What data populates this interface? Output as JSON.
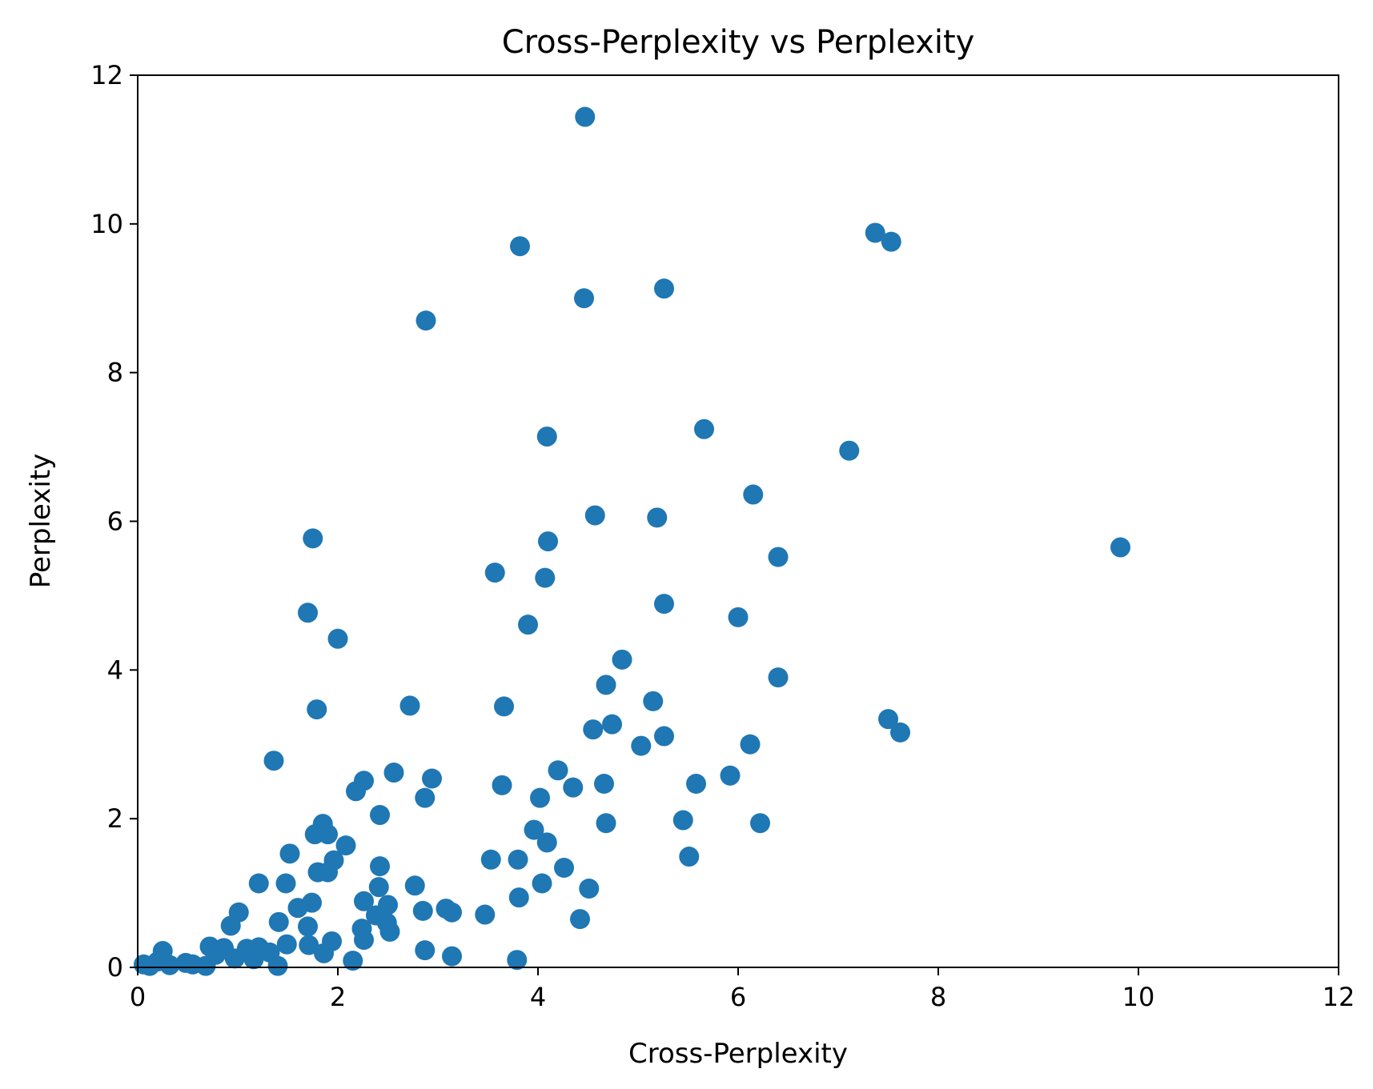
{
  "chart_data": {
    "type": "scatter",
    "title": "Cross-Perplexity vs Perplexity",
    "xlabel": "Cross-Perplexity",
    "ylabel": "Perplexity",
    "xlim": [
      0,
      12
    ],
    "ylim": [
      0,
      12
    ],
    "xticks": [
      "0",
      "2",
      "4",
      "6",
      "8",
      "10",
      "12"
    ],
    "yticks": [
      "0",
      "2",
      "4",
      "6",
      "8",
      "10",
      "12"
    ],
    "grid": false,
    "color": "#1f77b4",
    "points": [
      {
        "x": 4.47,
        "y": 11.44
      },
      {
        "x": 7.37,
        "y": 9.88
      },
      {
        "x": 7.53,
        "y": 9.76
      },
      {
        "x": 3.82,
        "y": 9.7
      },
      {
        "x": 5.26,
        "y": 9.13
      },
      {
        "x": 4.46,
        "y": 9.0
      },
      {
        "x": 2.88,
        "y": 8.7
      },
      {
        "x": 5.66,
        "y": 7.24
      },
      {
        "x": 4.09,
        "y": 7.14
      },
      {
        "x": 7.11,
        "y": 6.95
      },
      {
        "x": 6.15,
        "y": 6.36
      },
      {
        "x": 4.57,
        "y": 6.08
      },
      {
        "x": 5.19,
        "y": 6.05
      },
      {
        "x": 1.75,
        "y": 5.77
      },
      {
        "x": 4.1,
        "y": 5.73
      },
      {
        "x": 9.82,
        "y": 5.65
      },
      {
        "x": 6.4,
        "y": 5.52
      },
      {
        "x": 3.57,
        "y": 5.31
      },
      {
        "x": 4.07,
        "y": 5.24
      },
      {
        "x": 5.26,
        "y": 4.89
      },
      {
        "x": 1.7,
        "y": 4.77
      },
      {
        "x": 6.0,
        "y": 4.71
      },
      {
        "x": 3.9,
        "y": 4.61
      },
      {
        "x": 2.0,
        "y": 4.42
      },
      {
        "x": 4.84,
        "y": 4.14
      },
      {
        "x": 6.4,
        "y": 3.9
      },
      {
        "x": 4.68,
        "y": 3.8
      },
      {
        "x": 5.15,
        "y": 3.58
      },
      {
        "x": 2.72,
        "y": 3.52
      },
      {
        "x": 3.66,
        "y": 3.51
      },
      {
        "x": 1.79,
        "y": 3.47
      },
      {
        "x": 7.5,
        "y": 3.34
      },
      {
        "x": 4.74,
        "y": 3.27
      },
      {
        "x": 4.55,
        "y": 3.2
      },
      {
        "x": 7.62,
        "y": 3.16
      },
      {
        "x": 5.26,
        "y": 3.11
      },
      {
        "x": 6.12,
        "y": 3.0
      },
      {
        "x": 5.03,
        "y": 2.98
      },
      {
        "x": 1.36,
        "y": 2.78
      },
      {
        "x": 4.2,
        "y": 2.65
      },
      {
        "x": 2.56,
        "y": 2.62
      },
      {
        "x": 5.92,
        "y": 2.58
      },
      {
        "x": 2.94,
        "y": 2.54
      },
      {
        "x": 2.26,
        "y": 2.51
      },
      {
        "x": 4.66,
        "y": 2.47
      },
      {
        "x": 5.58,
        "y": 2.47
      },
      {
        "x": 3.64,
        "y": 2.45
      },
      {
        "x": 4.35,
        "y": 2.42
      },
      {
        "x": 2.18,
        "y": 2.37
      },
      {
        "x": 2.87,
        "y": 2.28
      },
      {
        "x": 4.02,
        "y": 2.28
      },
      {
        "x": 2.42,
        "y": 2.05
      },
      {
        "x": 5.45,
        "y": 1.98
      },
      {
        "x": 4.68,
        "y": 1.94
      },
      {
        "x": 6.22,
        "y": 1.94
      },
      {
        "x": 1.85,
        "y": 1.93
      },
      {
        "x": 3.96,
        "y": 1.85
      },
      {
        "x": 1.77,
        "y": 1.79
      },
      {
        "x": 1.9,
        "y": 1.79
      },
      {
        "x": 4.09,
        "y": 1.68
      },
      {
        "x": 2.08,
        "y": 1.64
      },
      {
        "x": 1.52,
        "y": 1.53
      },
      {
        "x": 5.51,
        "y": 1.49
      },
      {
        "x": 3.53,
        "y": 1.45
      },
      {
        "x": 3.8,
        "y": 1.45
      },
      {
        "x": 1.96,
        "y": 1.44
      },
      {
        "x": 2.42,
        "y": 1.36
      },
      {
        "x": 4.26,
        "y": 1.34
      },
      {
        "x": 1.8,
        "y": 1.28
      },
      {
        "x": 1.9,
        "y": 1.28
      },
      {
        "x": 1.21,
        "y": 1.13
      },
      {
        "x": 1.48,
        "y": 1.13
      },
      {
        "x": 4.04,
        "y": 1.13
      },
      {
        "x": 2.77,
        "y": 1.1
      },
      {
        "x": 2.41,
        "y": 1.08
      },
      {
        "x": 4.51,
        "y": 1.06
      },
      {
        "x": 3.81,
        "y": 0.94
      },
      {
        "x": 2.26,
        "y": 0.89
      },
      {
        "x": 1.74,
        "y": 0.87
      },
      {
        "x": 2.5,
        "y": 0.84
      },
      {
        "x": 1.6,
        "y": 0.8
      },
      {
        "x": 3.08,
        "y": 0.79
      },
      {
        "x": 2.85,
        "y": 0.76
      },
      {
        "x": 1.01,
        "y": 0.74
      },
      {
        "x": 3.14,
        "y": 0.74
      },
      {
        "x": 3.47,
        "y": 0.71
      },
      {
        "x": 2.38,
        "y": 0.7
      },
      {
        "x": 4.42,
        "y": 0.65
      },
      {
        "x": 1.41,
        "y": 0.61
      },
      {
        "x": 2.49,
        "y": 0.6
      },
      {
        "x": 0.93,
        "y": 0.56
      },
      {
        "x": 1.7,
        "y": 0.55
      },
      {
        "x": 2.24,
        "y": 0.52
      },
      {
        "x": 2.52,
        "y": 0.48
      },
      {
        "x": 2.26,
        "y": 0.37
      },
      {
        "x": 1.94,
        "y": 0.35
      },
      {
        "x": 1.49,
        "y": 0.31
      },
      {
        "x": 1.71,
        "y": 0.3
      },
      {
        "x": 0.72,
        "y": 0.28
      },
      {
        "x": 1.21,
        "y": 0.27
      },
      {
        "x": 0.86,
        "y": 0.26
      },
      {
        "x": 1.09,
        "y": 0.25
      },
      {
        "x": 2.87,
        "y": 0.23
      },
      {
        "x": 0.25,
        "y": 0.22
      },
      {
        "x": 1.32,
        "y": 0.2
      },
      {
        "x": 1.86,
        "y": 0.19
      },
      {
        "x": 0.78,
        "y": 0.17
      },
      {
        "x": 3.14,
        "y": 0.15
      },
      {
        "x": 0.97,
        "y": 0.12
      },
      {
        "x": 1.16,
        "y": 0.11
      },
      {
        "x": 3.79,
        "y": 0.1
      },
      {
        "x": 2.15,
        "y": 0.09
      },
      {
        "x": 0.2,
        "y": 0.08
      },
      {
        "x": 0.48,
        "y": 0.06
      },
      {
        "x": 0.06,
        "y": 0.04
      },
      {
        "x": 0.55,
        "y": 0.04
      },
      {
        "x": 0.32,
        "y": 0.03
      },
      {
        "x": 1.4,
        "y": 0.02
      },
      {
        "x": 0.12,
        "y": 0.02
      },
      {
        "x": 0.68,
        "y": 0.02
      }
    ]
  }
}
